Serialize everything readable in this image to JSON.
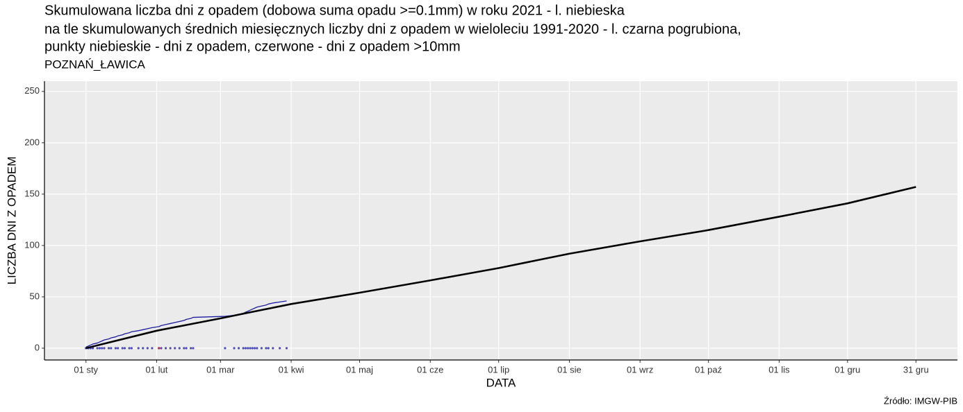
{
  "chart_data": {
    "type": "line",
    "title": "Skumulowana liczba dni z opadem (dobowa suma opadu >=0.1mm) w roku 2021 - l. niebieska",
    "title_line2": "na tle skumulowanych średnich miesięcznych liczby dni z opadem w wieloleciu 1991-2020 - l. czarna pogrubiona,",
    "title_line3": "punkty niebieskie - dni z opadem, czerwone - dni z opadem >10mm",
    "subtitle": "POZNAŃ_ŁAWICA",
    "x_label": "DATA",
    "y_label": "LICZBA DNI Z OPADEM",
    "caption": "Źródło: IMGW-PIB",
    "xlim": [
      -17.2,
      383.2
    ],
    "ylim": [
      -11.5,
      260
    ],
    "xticks": [
      {
        "value": 1,
        "label": "01 sty"
      },
      {
        "value": 32,
        "label": "01 lut"
      },
      {
        "value": 60,
        "label": "01 mar"
      },
      {
        "value": 91,
        "label": "01 kwi"
      },
      {
        "value": 121,
        "label": "01 maj"
      },
      {
        "value": 152,
        "label": "01 cze"
      },
      {
        "value": 182,
        "label": "01 lip"
      },
      {
        "value": 213,
        "label": "01 sie"
      },
      {
        "value": 244,
        "label": "01 wrz"
      },
      {
        "value": 274,
        "label": "01 paź"
      },
      {
        "value": 305,
        "label": "01 lis"
      },
      {
        "value": 335,
        "label": "01 gru"
      },
      {
        "value": 365,
        "label": "31 gru"
      }
    ],
    "yticks": [
      0,
      50,
      100,
      150,
      200,
      250
    ],
    "grid": true,
    "series": [
      {
        "mode": "points",
        "color": "#2020b0",
        "x": [
          1,
          2,
          3,
          4,
          6,
          7,
          8,
          9,
          11,
          12,
          14,
          15,
          17,
          18,
          20,
          21,
          24,
          26,
          28,
          30,
          33,
          34,
          36,
          38,
          40,
          42,
          44,
          45,
          47,
          48,
          62,
          66,
          68,
          70,
          71,
          72,
          73,
          74,
          75,
          76,
          78,
          80,
          81,
          83,
          86,
          89
        ],
        "values": [
          0,
          0,
          0,
          0,
          0,
          0,
          0,
          0,
          0,
          0,
          0,
          0,
          0,
          0,
          0,
          0,
          0,
          0,
          0,
          0,
          0,
          0,
          0,
          0,
          0,
          0,
          0,
          0,
          0,
          0,
          0,
          0,
          0,
          0,
          0,
          0,
          0,
          0,
          0,
          0,
          0,
          0,
          0,
          0,
          0,
          0
        ]
      },
      {
        "mode": "points",
        "color": "#e02020",
        "x": [
          33
        ],
        "values": [
          0
        ]
      },
      {
        "mode": "line",
        "color": "#1a1aa0",
        "width": 1.3,
        "x": [
          1,
          2,
          3,
          4,
          6,
          7,
          8,
          9,
          11,
          12,
          14,
          15,
          17,
          18,
          20,
          21,
          24,
          26,
          28,
          30,
          33,
          34,
          36,
          38,
          40,
          42,
          44,
          45,
          47,
          48,
          62,
          66,
          68,
          70,
          71,
          72,
          73,
          74,
          75,
          76,
          78,
          80,
          81,
          83,
          86,
          89
        ],
        "values": [
          1,
          2,
          3,
          4,
          5,
          6,
          7,
          8,
          9,
          10,
          11,
          12,
          13,
          14,
          15,
          16,
          17,
          18,
          19,
          20,
          21,
          22,
          23,
          24,
          25,
          26,
          27,
          28,
          29,
          30,
          31,
          32,
          33,
          34,
          35,
          36,
          37,
          38,
          39,
          40,
          41,
          42,
          43,
          44,
          45,
          46
        ]
      },
      {
        "mode": "line",
        "color": "#000000",
        "width": 2.6,
        "x": [
          1,
          32,
          60,
          91,
          121,
          152,
          182,
          213,
          244,
          274,
          305,
          335,
          365
        ],
        "values": [
          0,
          17,
          29,
          43,
          54,
          66,
          78,
          92,
          104,
          115,
          128,
          141,
          157
        ]
      }
    ]
  }
}
